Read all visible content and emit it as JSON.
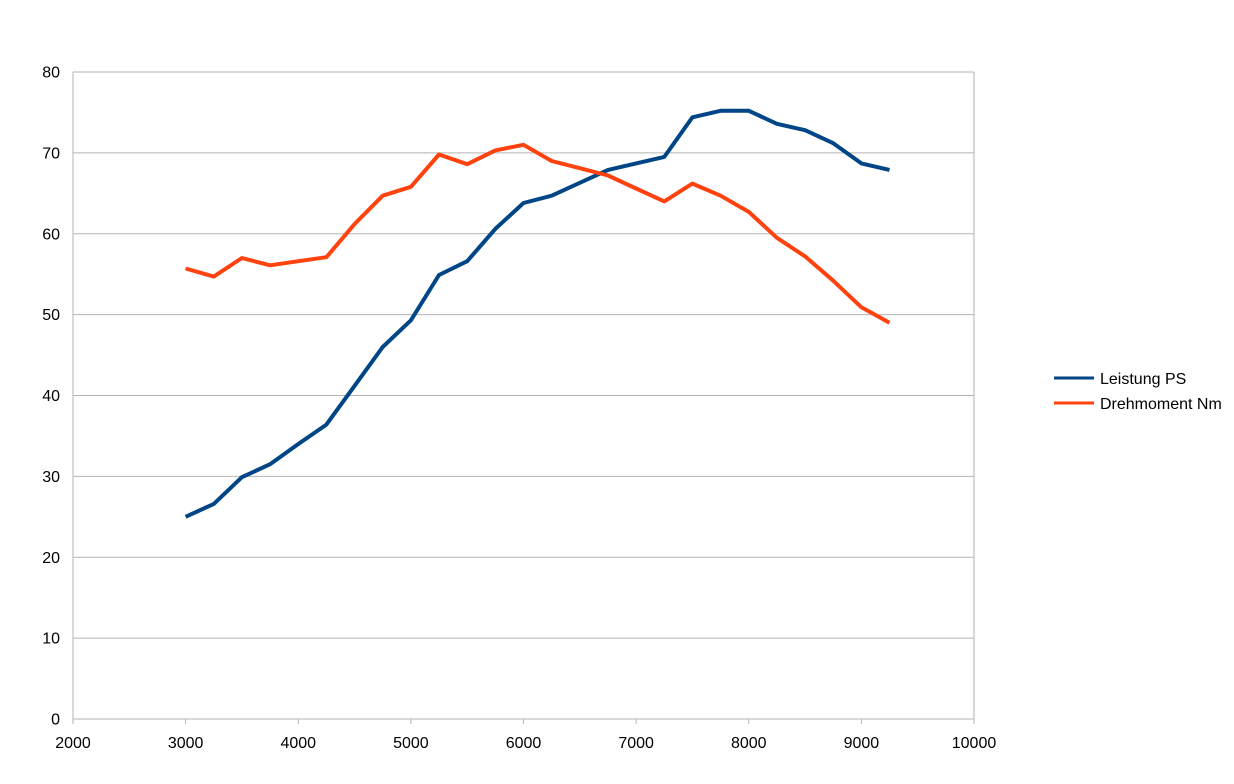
{
  "chart_data": {
    "type": "line",
    "title": "",
    "xlabel": "",
    "ylabel": "",
    "xlim": [
      2000,
      10000
    ],
    "ylim": [
      0,
      80
    ],
    "xticks": [
      2000,
      3000,
      4000,
      5000,
      6000,
      7000,
      8000,
      9000,
      10000
    ],
    "yticks": [
      0,
      10,
      20,
      30,
      40,
      50,
      60,
      70,
      80
    ],
    "grid": "horizontal",
    "legend": "right",
    "x": [
      3000,
      3250,
      3500,
      3750,
      4000,
      4250,
      4500,
      4750,
      5000,
      5250,
      5500,
      5750,
      6000,
      6250,
      6500,
      6750,
      7000,
      7250,
      7500,
      7750,
      8000,
      8250,
      8500,
      8750,
      9000,
      9250
    ],
    "series": [
      {
        "name": "Leistung PS",
        "color": "#004586",
        "values": [
          25.0,
          26.6,
          29.9,
          31.5,
          34.0,
          36.4,
          41.2,
          46.0,
          49.3,
          54.9,
          56.6,
          60.6,
          63.8,
          64.7,
          66.3,
          67.9,
          68.7,
          69.5,
          74.4,
          75.2,
          75.2,
          73.6,
          72.8,
          71.2,
          68.7,
          67.9
        ]
      },
      {
        "name": "Drehmoment Nm",
        "color": "#ff420e",
        "values": [
          55.7,
          54.7,
          57.0,
          56.1,
          56.6,
          57.1,
          61.2,
          64.7,
          65.8,
          69.8,
          68.6,
          70.3,
          71.0,
          69.0,
          68.1,
          67.2,
          65.6,
          64.0,
          66.2,
          64.7,
          62.7,
          59.5,
          57.2,
          54.2,
          50.9,
          49.0
        ]
      }
    ]
  }
}
